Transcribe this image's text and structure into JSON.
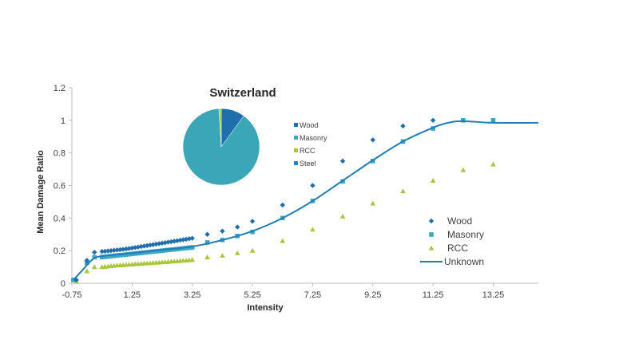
{
  "chart_data": [
    {
      "type": "scatter",
      "title": "",
      "xlabel": "Intensity",
      "ylabel": "Mean Damage Ratio",
      "xlim": [
        -0.75,
        14.75
      ],
      "ylim": [
        0,
        1.2
      ],
      "xticks": [
        "-0.75",
        "1.25",
        "3.25",
        "5.25",
        "7.25",
        "9.25",
        "11.25",
        "13.25"
      ],
      "yticks": [
        "0",
        "0.2",
        "0.4",
        "0.6",
        "0.8",
        "1",
        "1.2"
      ],
      "legend_position": "bottom-right",
      "series": [
        {
          "name": "Wood",
          "marker": "diamond",
          "color": "#1f6fad",
          "points": [
            [
              -0.6,
              0.02
            ],
            [
              -0.25,
              0.14
            ],
            [
              0.0,
              0.19
            ],
            [
              0.25,
              0.195
            ],
            [
              0.35,
              0.196
            ],
            [
              0.45,
              0.198
            ],
            [
              0.55,
              0.2
            ],
            [
              0.65,
              0.202
            ],
            [
              0.75,
              0.204
            ],
            [
              0.85,
              0.206
            ],
            [
              0.95,
              0.208
            ],
            [
              1.05,
              0.21
            ],
            [
              1.15,
              0.213
            ],
            [
              1.25,
              0.216
            ],
            [
              1.35,
              0.219
            ],
            [
              1.45,
              0.222
            ],
            [
              1.55,
              0.225
            ],
            [
              1.65,
              0.228
            ],
            [
              1.75,
              0.231
            ],
            [
              1.85,
              0.234
            ],
            [
              1.95,
              0.237
            ],
            [
              2.05,
              0.24
            ],
            [
              2.15,
              0.243
            ],
            [
              2.25,
              0.246
            ],
            [
              2.35,
              0.249
            ],
            [
              2.45,
              0.252
            ],
            [
              2.55,
              0.255
            ],
            [
              2.65,
              0.258
            ],
            [
              2.75,
              0.261
            ],
            [
              2.85,
              0.264
            ],
            [
              2.95,
              0.267
            ],
            [
              3.05,
              0.27
            ],
            [
              3.15,
              0.273
            ],
            [
              3.25,
              0.276
            ],
            [
              3.75,
              0.3
            ],
            [
              4.25,
              0.32
            ],
            [
              4.75,
              0.345
            ],
            [
              5.25,
              0.38
            ],
            [
              6.25,
              0.48
            ],
            [
              7.25,
              0.6
            ],
            [
              8.25,
              0.75
            ],
            [
              9.25,
              0.88
            ],
            [
              10.25,
              0.965
            ],
            [
              11.25,
              1.0
            ]
          ]
        },
        {
          "name": "Masonry",
          "marker": "square",
          "color": "#3aa6c4",
          "points": [
            [
              -0.7,
              0.02
            ],
            [
              -0.25,
              0.125
            ],
            [
              0.0,
              0.16
            ],
            [
              0.25,
              0.16
            ],
            [
              0.35,
              0.162
            ],
            [
              0.45,
              0.164
            ],
            [
              0.55,
              0.166
            ],
            [
              0.65,
              0.168
            ],
            [
              0.75,
              0.17
            ],
            [
              0.85,
              0.172
            ],
            [
              0.95,
              0.174
            ],
            [
              1.05,
              0.176
            ],
            [
              1.15,
              0.178
            ],
            [
              1.25,
              0.18
            ],
            [
              1.35,
              0.182
            ],
            [
              1.45,
              0.184
            ],
            [
              1.55,
              0.186
            ],
            [
              1.65,
              0.188
            ],
            [
              1.75,
              0.19
            ],
            [
              1.85,
              0.192
            ],
            [
              1.95,
              0.194
            ],
            [
              2.05,
              0.196
            ],
            [
              2.15,
              0.198
            ],
            [
              2.25,
              0.2
            ],
            [
              2.35,
              0.202
            ],
            [
              2.45,
              0.204
            ],
            [
              2.55,
              0.206
            ],
            [
              2.65,
              0.208
            ],
            [
              2.75,
              0.21
            ],
            [
              2.85,
              0.212
            ],
            [
              2.95,
              0.214
            ],
            [
              3.05,
              0.216
            ],
            [
              3.15,
              0.218
            ],
            [
              3.25,
              0.22
            ],
            [
              3.75,
              0.25
            ],
            [
              4.25,
              0.265
            ],
            [
              4.75,
              0.29
            ],
            [
              5.25,
              0.315
            ],
            [
              6.25,
              0.4
            ],
            [
              7.25,
              0.505
            ],
            [
              8.25,
              0.625
            ],
            [
              9.25,
              0.75
            ],
            [
              10.25,
              0.87
            ],
            [
              11.25,
              0.95
            ],
            [
              12.25,
              1.0
            ],
            [
              13.25,
              1.0
            ]
          ]
        },
        {
          "name": "RCC",
          "marker": "triangle",
          "color": "#a8c63a",
          "points": [
            [
              -0.6,
              0.01
            ],
            [
              -0.25,
              0.075
            ],
            [
              0.0,
              0.1
            ],
            [
              0.25,
              0.1
            ],
            [
              0.35,
              0.102
            ],
            [
              0.45,
              0.104
            ],
            [
              0.55,
              0.106
            ],
            [
              0.65,
              0.108
            ],
            [
              0.75,
              0.11
            ],
            [
              0.85,
              0.111
            ],
            [
              0.95,
              0.112
            ],
            [
              1.05,
              0.114
            ],
            [
              1.15,
              0.115
            ],
            [
              1.25,
              0.116
            ],
            [
              1.35,
              0.118
            ],
            [
              1.45,
              0.119
            ],
            [
              1.55,
              0.12
            ],
            [
              1.65,
              0.122
            ],
            [
              1.75,
              0.123
            ],
            [
              1.85,
              0.124
            ],
            [
              1.95,
              0.126
            ],
            [
              2.05,
              0.127
            ],
            [
              2.15,
              0.128
            ],
            [
              2.25,
              0.13
            ],
            [
              2.35,
              0.131
            ],
            [
              2.45,
              0.132
            ],
            [
              2.55,
              0.134
            ],
            [
              2.65,
              0.135
            ],
            [
              2.75,
              0.136
            ],
            [
              2.85,
              0.138
            ],
            [
              2.95,
              0.139
            ],
            [
              3.05,
              0.14
            ],
            [
              3.15,
              0.142
            ],
            [
              3.25,
              0.144
            ],
            [
              3.75,
              0.16
            ],
            [
              4.25,
              0.17
            ],
            [
              4.75,
              0.185
            ],
            [
              5.25,
              0.2
            ],
            [
              6.25,
              0.26
            ],
            [
              7.25,
              0.33
            ],
            [
              8.25,
              0.41
            ],
            [
              9.25,
              0.49
            ],
            [
              10.25,
              0.565
            ],
            [
              11.25,
              0.63
            ],
            [
              12.25,
              0.695
            ],
            [
              13.25,
              0.73
            ]
          ]
        },
        {
          "name": "Unknown",
          "marker": "line",
          "color": "#1f7fb4",
          "points": [
            [
              -0.7,
              0.02
            ],
            [
              -0.4,
              0.08
            ],
            [
              -0.1,
              0.14
            ],
            [
              0.2,
              0.165
            ],
            [
              1.25,
              0.185
            ],
            [
              2.25,
              0.205
            ],
            [
              3.25,
              0.225
            ],
            [
              4.25,
              0.265
            ],
            [
              5.25,
              0.32
            ],
            [
              6.25,
              0.4
            ],
            [
              7.25,
              0.505
            ],
            [
              8.25,
              0.63
            ],
            [
              9.25,
              0.755
            ],
            [
              10.25,
              0.87
            ],
            [
              11.25,
              0.955
            ],
            [
              11.75,
              0.985
            ],
            [
              12.25,
              0.995
            ],
            [
              13.25,
              0.985
            ],
            [
              14.75,
              0.985
            ]
          ]
        }
      ]
    },
    {
      "type": "pie",
      "title": "Switzerland",
      "legend_position": "right",
      "slices": [
        {
          "name": "Wood",
          "value": 10,
          "color": "#1f6fad"
        },
        {
          "name": "Masonry",
          "value": 89,
          "color": "#3aa6b8"
        },
        {
          "name": "RCC",
          "value": 1,
          "color": "#a8c63a"
        },
        {
          "name": "Steel",
          "value": 0,
          "color": "#2f7fc1"
        }
      ]
    }
  ]
}
